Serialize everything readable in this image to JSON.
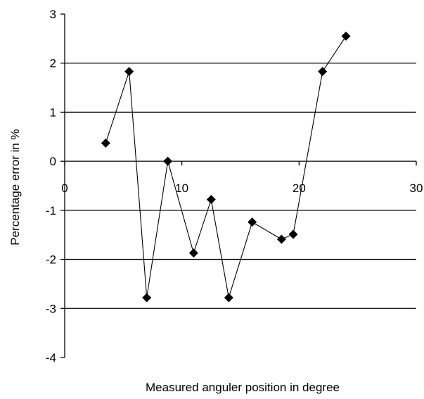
{
  "chart_data": {
    "type": "scatter",
    "title": "",
    "xlabel": "Measured anguler position in degree",
    "ylabel": "Percentage error in %",
    "xlim": [
      0,
      30
    ],
    "ylim": [
      -4,
      3
    ],
    "x_ticks": [
      "0",
      "10",
      "20",
      "30"
    ],
    "y_ticks": [
      "3",
      "2",
      "1",
      "0",
      "-1",
      "-2",
      "-3",
      "-4"
    ],
    "grid": "horizontal",
    "legend": "none",
    "marker": "diamond",
    "color": "#000000",
    "series": [
      {
        "x": [
          3.5,
          5.5,
          7,
          8.8,
          11,
          12.5,
          14,
          16,
          18.5,
          19.5,
          22,
          24
        ],
        "y": [
          0.37,
          1.83,
          -2.78,
          0.0,
          -1.87,
          -0.78,
          -2.78,
          -1.24,
          -1.59,
          -1.49,
          1.83,
          2.55
        ]
      }
    ]
  }
}
